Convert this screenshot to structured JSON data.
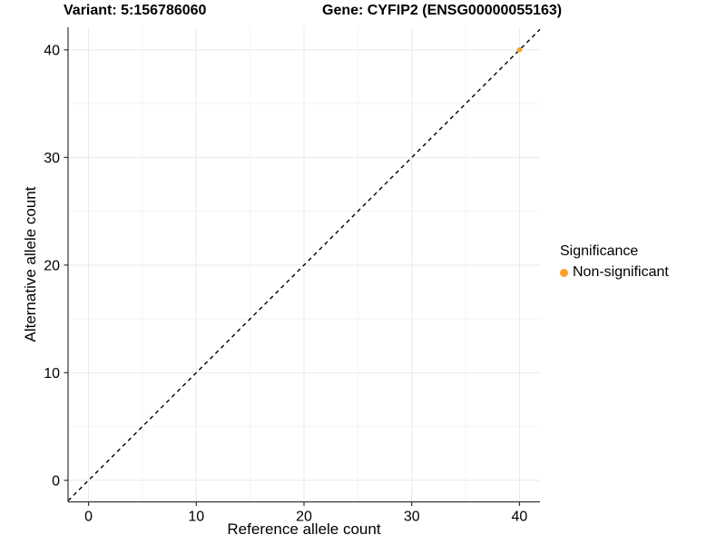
{
  "header": {
    "title_left": "Variant: 5:156786060",
    "title_right": "Gene: CYFIP2 (ENSG00000055163)"
  },
  "axes": {
    "x_title": "Reference allele count",
    "y_title": "Alternative allele count"
  },
  "legend": {
    "title": "Significance",
    "items": [
      {
        "label": "Non-significant",
        "color": "#F9A02B",
        "marker": "circle-icon"
      }
    ]
  },
  "chart_data": {
    "type": "scatter",
    "title": "Variant: 5:156786060 / Gene: CYFIP2 (ENSG00000055163)",
    "xlabel": "Reference allele count",
    "ylabel": "Alternative allele count",
    "xlim": [
      -1.9,
      41.9
    ],
    "ylim": [
      -2.0,
      42.1
    ],
    "x_ticks": [
      0,
      10,
      20,
      30,
      40
    ],
    "y_ticks": [
      0,
      10,
      20,
      30,
      40
    ],
    "x_minor_ticks": [
      5,
      15,
      25,
      35
    ],
    "y_minor_ticks": [
      5,
      15,
      25,
      35
    ],
    "grid": true,
    "legend_position": "right",
    "series": [
      {
        "name": "Non-significant",
        "color": "#F9A02B",
        "points": [
          {
            "x": 40,
            "y": 40
          }
        ]
      }
    ],
    "reference_line": {
      "type": "identity",
      "slope": 1,
      "intercept": 0,
      "style": "dashed",
      "color": "#000000"
    }
  },
  "style": {
    "background": "#FFFFFF",
    "grid_major_color": "#E9E9E9",
    "grid_minor_color": "#F3F3F3",
    "axis_line_color": "#333333",
    "tick_color": "#333333",
    "text_color": "#000000",
    "point_color": "#F9A02B"
  }
}
